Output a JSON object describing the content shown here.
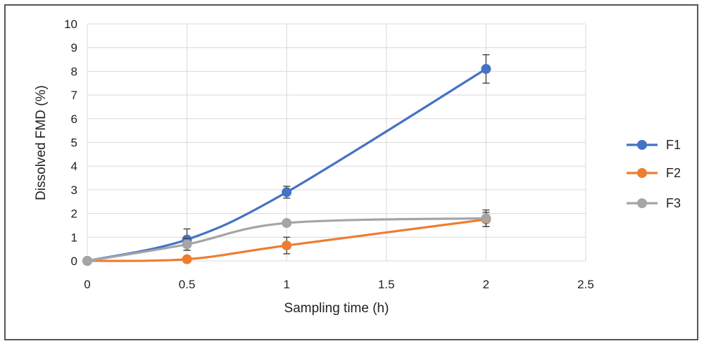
{
  "chart_data": {
    "type": "line",
    "title": "",
    "xlabel": "Sampling time (h)",
    "ylabel": "Dissolved FMD (%)",
    "xlim": [
      0,
      2.5
    ],
    "ylim": [
      0,
      10
    ],
    "xticks": [
      "0",
      "0.5",
      "1",
      "1.5",
      "2",
      "2.5"
    ],
    "yticks": [
      "0",
      "1",
      "2",
      "3",
      "4",
      "5",
      "6",
      "7",
      "8",
      "9",
      "10"
    ],
    "grid": true,
    "smooth": true,
    "legend_position": "right",
    "series": [
      {
        "name": "F1",
        "color": "#4472C4",
        "x": [
          0,
          0.5,
          1,
          2
        ],
        "y": [
          0,
          0.9,
          2.9,
          8.1
        ],
        "err": [
          0,
          0.45,
          0.25,
          0.6
        ]
      },
      {
        "name": "F2",
        "color": "#ED7D31",
        "x": [
          0,
          0.5,
          1,
          2
        ],
        "y": [
          0,
          0.07,
          0.65,
          1.75
        ],
        "err": [
          0,
          0,
          0.35,
          0.3
        ]
      },
      {
        "name": "F3",
        "color": "#A5A5A5",
        "x": [
          0,
          0.5,
          1,
          2
        ],
        "y": [
          0,
          0.7,
          1.6,
          1.8
        ],
        "err": [
          0,
          0.25,
          0,
          0.35
        ]
      }
    ]
  }
}
